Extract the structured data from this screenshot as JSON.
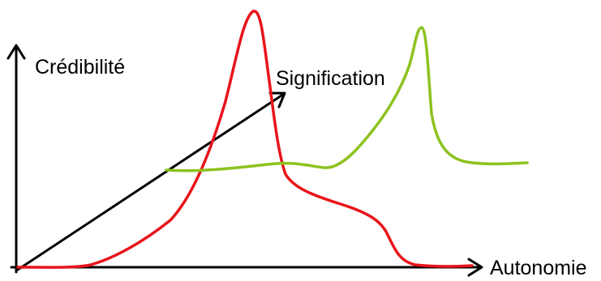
{
  "labels": {
    "y_axis": "Crédibilité",
    "x_axis": "Autonomie",
    "diagonal": "Signification"
  },
  "colors": {
    "axes": "#000000",
    "red_curve": "#e8141b",
    "green_curve": "#8dc21f",
    "background": "#ffffff"
  },
  "chart_data": {
    "type": "line",
    "title": "",
    "xlabel": "Autonomie",
    "ylabel": "Crédibilité",
    "annotations": [
      "Signification"
    ],
    "series": []
  }
}
